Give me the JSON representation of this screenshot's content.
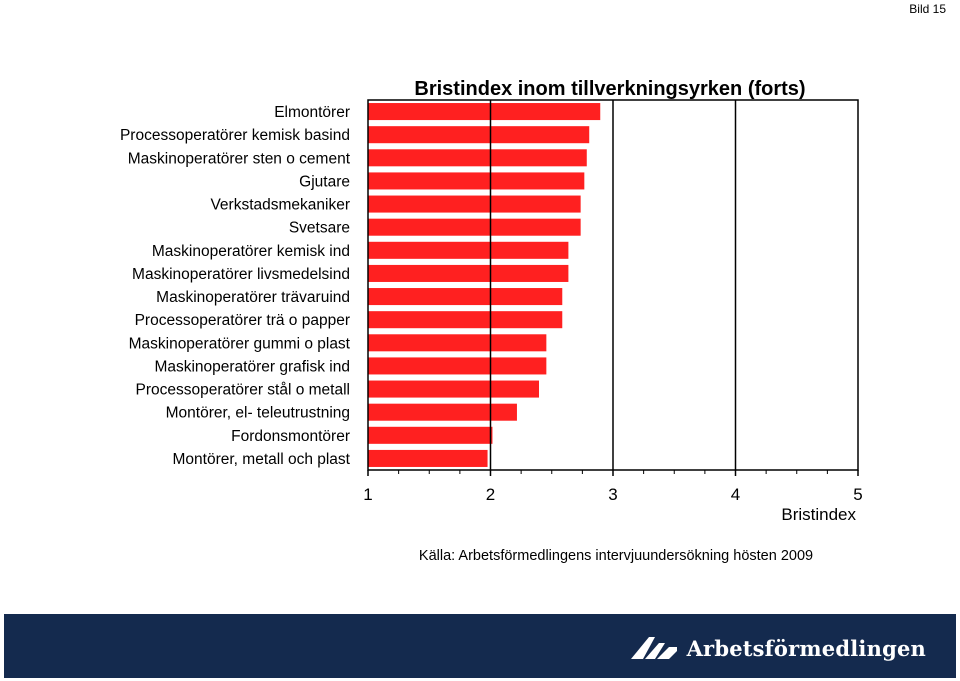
{
  "slide_number": "Bild 15",
  "chart_data": {
    "type": "bar",
    "orientation": "horizontal",
    "title": "Bristindex inom tillverkningsyrken (forts)",
    "xlabel": "Bristindex",
    "source": "Källa: Arbetsförmedlingens intervjuundersökning hösten 2009",
    "categories": [
      "Elmontörer",
      "Processoperatörer kemisk basind",
      "Maskinoperatörer sten o cement",
      "Gjutare",
      "Verkstadsmekaniker",
      "Svetsare",
      "Maskinoperatörer kemisk ind",
      "Maskinoperatörer livsmedelsind",
      "Maskinoperatörer trävaruind",
      "Processoperatörer trä o papper",
      "Maskinoperatörer gummi o plast",
      "Maskinoperatörer grafisk ind",
      "Processoperatörer stål o metall",
      "Montörer, el- teleutrustning",
      "Fordonsmontörer",
      "Montörer, metall och plast"
    ],
    "values": [
      2.9,
      2.81,
      2.79,
      2.77,
      2.74,
      2.74,
      2.64,
      2.64,
      2.59,
      2.59,
      2.46,
      2.46,
      2.4,
      2.22,
      2.02,
      1.98
    ],
    "xlim": [
      1,
      5
    ],
    "xticks": [
      1,
      2,
      3,
      4,
      5
    ],
    "xtick_labels": [
      "1",
      "2",
      "3",
      "4",
      "5"
    ],
    "vertical_gridlines_at": [
      2,
      3,
      4
    ],
    "bar_color": "#ff2020",
    "bar_outline": "#ffffff"
  },
  "footer": {
    "background": "#142a4e",
    "logo_icon": "arbetsformedlingen-logo-icon",
    "logo_text": "Arbetsförmedlingen"
  }
}
